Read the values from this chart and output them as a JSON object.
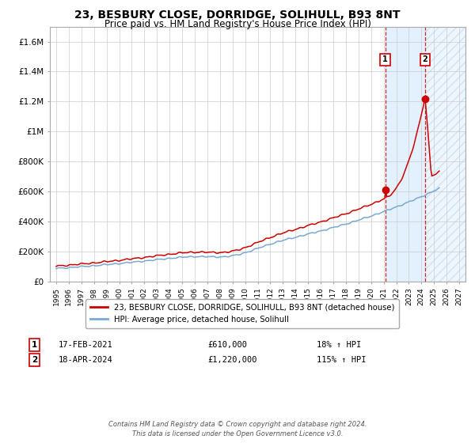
{
  "title": "23, BESBURY CLOSE, DORRIDGE, SOLIHULL, B93 8NT",
  "subtitle": "Price paid vs. HM Land Registry's House Price Index (HPI)",
  "title_fontsize": 10,
  "subtitle_fontsize": 8.5,
  "hpi_color": "#7aa8d2",
  "price_color": "#cc0000",
  "background_color": "#ffffff",
  "plot_bg_color": "#ffffff",
  "grid_color": "#cccccc",
  "shade_color": "#ddeeff",
  "hatch_color": "#aaccee",
  "ylim": [
    0,
    1700000
  ],
  "yticks": [
    0,
    200000,
    400000,
    600000,
    800000,
    1000000,
    1200000,
    1400000,
    1600000
  ],
  "ytick_labels": [
    "£0",
    "£200K",
    "£400K",
    "£600K",
    "£800K",
    "£1M",
    "£1.2M",
    "£1.4M",
    "£1.6M"
  ],
  "xlim_start": 1994.5,
  "xlim_end": 2027.5,
  "xticks": [
    1995,
    1996,
    1997,
    1998,
    1999,
    2000,
    2001,
    2002,
    2003,
    2004,
    2005,
    2006,
    2007,
    2008,
    2009,
    2010,
    2011,
    2012,
    2013,
    2014,
    2015,
    2016,
    2017,
    2018,
    2019,
    2020,
    2021,
    2022,
    2023,
    2024,
    2025,
    2026,
    2027
  ],
  "sale1_x": 2021.125,
  "sale1_y": 610000,
  "sale2_x": 2024.29,
  "sale2_y": 1220000,
  "shade_start": 2021.125,
  "shade_end": 2024.29,
  "hatch_start": 2024.29,
  "hatch_end": 2027.5,
  "legend_line1": "23, BESBURY CLOSE, DORRIDGE, SOLIHULL, B93 8NT (detached house)",
  "legend_line2": "HPI: Average price, detached house, Solihull",
  "note1_num": "1",
  "note1_date": "17-FEB-2021",
  "note1_price": "£610,000",
  "note1_hpi": "18% ↑ HPI",
  "note2_num": "2",
  "note2_date": "18-APR-2024",
  "note2_price": "£1,220,000",
  "note2_hpi": "115% ↑ HPI",
  "footer": "Contains HM Land Registry data © Crown copyright and database right 2024.\nThis data is licensed under the Open Government Licence v3.0."
}
